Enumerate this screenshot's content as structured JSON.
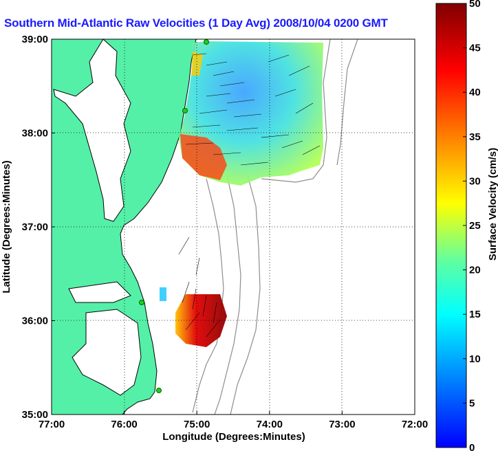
{
  "title": "Southern Mid-Atlantic Raw Velocities (1 Day Avg) 2008/10/04 0200 GMT",
  "map": {
    "xlabel": "Longitude (Degrees:Minutes)",
    "ylabel": "Latitude (Degrees:Minutes)",
    "x_ticks": [
      "77:00",
      "76:00",
      "75:00",
      "74:00",
      "73:00",
      "72:00"
    ],
    "y_ticks": [
      "39:00",
      "38:00",
      "37:00",
      "36:00",
      "35:00"
    ],
    "lon_range": [
      -77,
      -72
    ],
    "lat_range": [
      35,
      39
    ],
    "grid": true,
    "colors": {
      "land": "#55f0a8",
      "coast_line": "#000000",
      "isobath": "#8c8c8c",
      "station": "#22cc22"
    }
  },
  "colorbar": {
    "label": "Surface Velocity (cm/s)",
    "ticks": [
      "0",
      "5",
      "10",
      "15",
      "20",
      "25",
      "30",
      "35",
      "40",
      "45",
      "50"
    ],
    "range": [
      0,
      50
    ],
    "colormap": "jet"
  }
}
